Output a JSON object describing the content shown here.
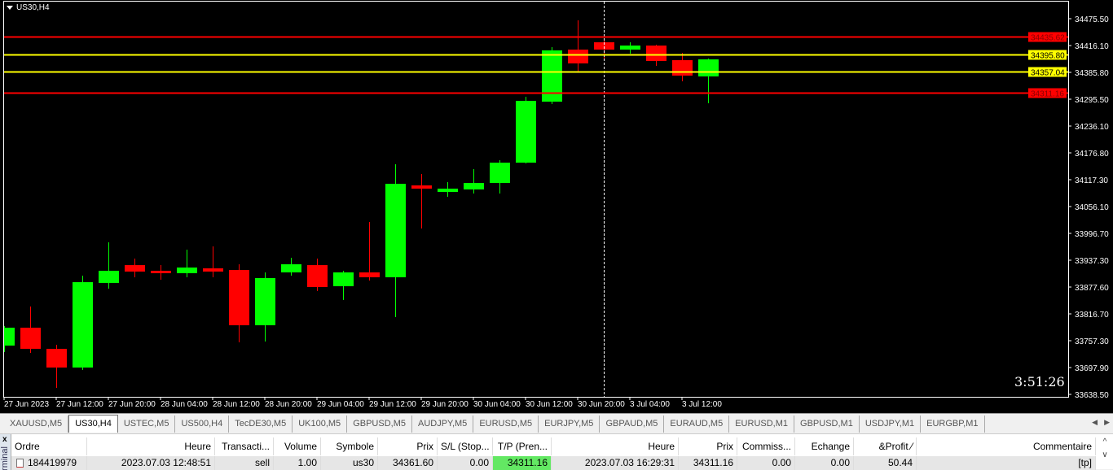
{
  "chart": {
    "title": "US30,H4",
    "clock": "3:51:26",
    "colors": {
      "bull": "#00ff00",
      "bear": "#ff0000",
      "background": "#000000",
      "axis_text": "#ffffff",
      "line_red": "#ff0000",
      "line_yellow": "#ffff00"
    },
    "price_labels": [
      "34475.50",
      "34416.10",
      "34385.80",
      "34295.50",
      "34236.10",
      "34176.80",
      "34117.30",
      "34056.10",
      "33996.70",
      "33937.30",
      "33877.60",
      "33816.70",
      "33757.30",
      "33697.90",
      "33638.50"
    ],
    "price_range": [
      33638.5,
      34475.5
    ],
    "time_labels": [
      "27 Jun 2023",
      "27 Jun 12:00",
      "27 Jun 20:00",
      "28 Jun 04:00",
      "28 Jun 12:00",
      "28 Jun 20:00",
      "29 Jun 04:00",
      "29 Jun 12:00",
      "29 Jun 20:00",
      "30 Jun 04:00",
      "30 Jun 12:00",
      "30 Jun 20:00",
      "3 Jul 04:00",
      "3 Jul 12:00"
    ],
    "hlines": [
      {
        "price": 34435.62,
        "label": "34435.62",
        "color": "red"
      },
      {
        "price": 34395.8,
        "label": "34395.80",
        "color": "yellow"
      },
      {
        "price": 34357.04,
        "label": "34357.04",
        "color": "yellow"
      },
      {
        "price": 34311.16,
        "label": "34311.16",
        "color": "red"
      }
    ],
    "crosshair_candle": 23,
    "candles": [
      [
        33747.2,
        33790.7,
        33732.7,
        33787.1
      ],
      [
        33787.1,
        33834.3,
        33730.9,
        33740.0
      ],
      [
        33740.0,
        33749.0,
        33653.0,
        33698.3
      ],
      [
        33698.3,
        33903.0,
        33692.9,
        33888.6
      ],
      [
        33886.8,
        33977.3,
        33874.1,
        33913.9
      ],
      [
        33926.5,
        33941.1,
        33899.4,
        33912.1
      ],
      [
        33913.9,
        33926.5,
        33894.0,
        33908.5
      ],
      [
        33908.5,
        33961.0,
        33899.4,
        33921.1
      ],
      [
        33919.3,
        33968.2,
        33899.4,
        33912.1
      ],
      [
        33915.7,
        33928.4,
        33754.5,
        33792.5
      ],
      [
        33792.5,
        33910.3,
        33756.3,
        33897.6
      ],
      [
        33910.3,
        33942.9,
        33903.0,
        33928.4
      ],
      [
        33926.5,
        33941.1,
        33868.7,
        33877.7
      ],
      [
        33879.5,
        33913.9,
        33848.8,
        33910.3
      ],
      [
        33910.3,
        34022.6,
        33892.2,
        33899.4
      ],
      [
        33899.4,
        34151.2,
        33810.6,
        34107.7
      ],
      [
        34104.1,
        34129.5,
        34008.1,
        34096.9
      ],
      [
        34089.6,
        34111.3,
        34078.8,
        34096.9
      ],
      [
        34095.1,
        34140.3,
        34086.0,
        34109.5
      ],
      [
        34109.5,
        34160.3,
        34086.0,
        34154.8
      ],
      [
        34154.8,
        34301.6,
        34153.0,
        34292.5
      ],
      [
        34290.7,
        34412.1,
        34285.3,
        34404.9
      ],
      [
        34406.7,
        34471.9,
        34357.7,
        34375.9
      ],
      [
        34423.0,
        34428.4,
        34383.1,
        34406.7
      ],
      [
        34406.7,
        34423.0,
        34397.6,
        34415.7
      ],
      [
        34415.7,
        34417.5,
        34370.4,
        34381.3
      ],
      [
        34383.1,
        34399.4,
        34336.0,
        34348.7
      ],
      [
        34346.9,
        34386.7,
        34287.1,
        34384.9
      ]
    ]
  },
  "tabs": [
    {
      "label": "XAUUSD,M5"
    },
    {
      "label": "US30,H4",
      "active": true
    },
    {
      "label": "USTEC,M5"
    },
    {
      "label": "US500,H4"
    },
    {
      "label": "TecDE30,M5"
    },
    {
      "label": "UK100,M5"
    },
    {
      "label": "GBPUSD,M5"
    },
    {
      "label": "AUDJPY,M5"
    },
    {
      "label": "EURUSD,M5"
    },
    {
      "label": "EURJPY,M5"
    },
    {
      "label": "GBPAUD,M5"
    },
    {
      "label": "EURAUD,M5"
    },
    {
      "label": "EURUSD,M1"
    },
    {
      "label": "GBPUSD,M1"
    },
    {
      "label": "USDJPY,M1"
    },
    {
      "label": "EURGBP,M1"
    }
  ],
  "terminal": {
    "close": "x",
    "side_label": "Terminal",
    "columns": [
      "Ordre",
      "Heure",
      "Transacti...",
      "Volume",
      "Symbole",
      "Prix",
      "S/L (Stop...",
      "T/P (Pren...",
      "Heure",
      "Prix",
      "Commiss...",
      "Echange",
      "&Profit  ⁄",
      "Commentaire"
    ],
    "rows": [
      [
        "184419979",
        "2023.07.03 12:48:51",
        "sell",
        "1.00",
        "us30",
        "34361.60",
        "0.00",
        "34311.16",
        "2023.07.03 16:29:31",
        "34311.16",
        "0.00",
        "0.00",
        "50.44",
        "[tp]"
      ]
    ]
  }
}
